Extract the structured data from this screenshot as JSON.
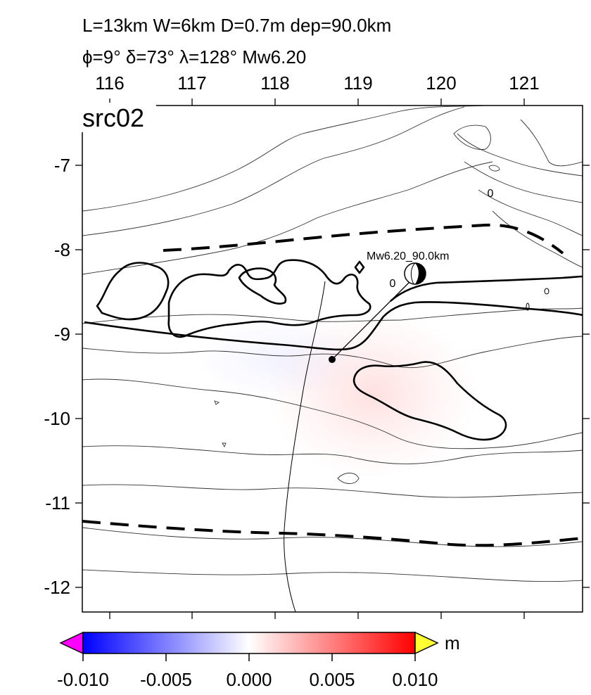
{
  "header": {
    "line1": "L=13km W=6km D=0.7m dep=90.0km",
    "line2": "ϕ=9° δ=73° λ=128° Mw6.20"
  },
  "map": {
    "panel_label": "src02",
    "x_ticks": [
      "116",
      "117",
      "118",
      "119",
      "120",
      "121"
    ],
    "y_ticks": [
      "-7",
      "-8",
      "-9",
      "-10",
      "-11",
      "-12"
    ],
    "event_label": "Mw6.20_90.0km",
    "contour_labels": [
      "0",
      "0"
    ],
    "colors": {
      "positive": "#ff0000",
      "negative": "#0000ff"
    }
  },
  "colorbar": {
    "ticks": [
      "-0.010",
      "-0.005",
      "0.000",
      "0.005",
      "0.010"
    ],
    "unit": "m",
    "colors": {
      "min": "#0000ff",
      "mid": "#ffffff",
      "max": "#ff0000",
      "under": "#ff00ff",
      "over": "#ffff33"
    }
  }
}
